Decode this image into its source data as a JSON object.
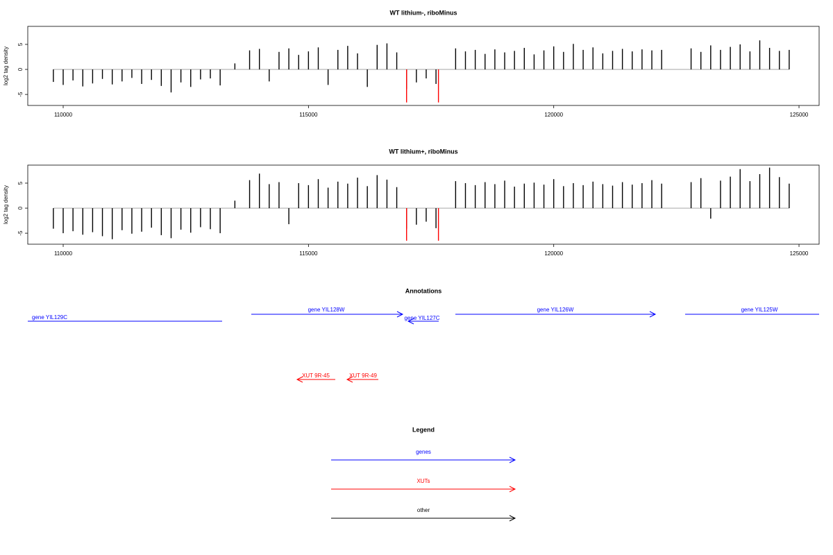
{
  "chart_data": [
    {
      "type": "bar",
      "title": "WT lithium-, riboMinus",
      "y_label": "log2 tag density",
      "xlim": [
        109278,
        125410
      ],
      "ylim": [
        -7.2,
        8.6
      ],
      "xticks": [
        110000,
        115000,
        120000,
        125000
      ],
      "yticks": [
        -5,
        0,
        5
      ],
      "series": [
        {
          "color": "#000000",
          "x": [
            109800,
            110000,
            110200,
            110400,
            110600,
            110800,
            111000,
            111200,
            111400,
            111600,
            111800,
            112000,
            112200,
            112400,
            112600,
            112800,
            113000,
            113200,
            113500,
            113800,
            114000,
            114200,
            114400,
            114600,
            114800,
            115000,
            115200,
            115400,
            115600,
            115800,
            116000,
            116200,
            116400,
            116600,
            116800,
            117000,
            117200,
            117400,
            117600,
            118000,
            118200,
            118400,
            118600,
            118800,
            119000,
            119200,
            119400,
            119600,
            119800,
            120000,
            120200,
            120400,
            120600,
            120800,
            121000,
            121200,
            121400,
            121600,
            121800,
            122000,
            122200,
            122800,
            123000,
            123200,
            123400,
            123600,
            123800,
            124000,
            124200,
            124400,
            124600,
            124800
          ],
          "values": [
            -2.5,
            -3.1,
            -2.2,
            -3.4,
            -2.8,
            -1.9,
            -3.0,
            -2.4,
            -1.7,
            -2.9,
            -2.1,
            -3.3,
            -4.6,
            -2.6,
            -3.5,
            -2.0,
            -1.8,
            -3.2,
            1.2,
            3.8,
            4.1,
            -2.4,
            3.5,
            4.2,
            2.9,
            3.6,
            4.4,
            -3.1,
            3.9,
            4.7,
            3.2,
            -3.5,
            4.9,
            5.2,
            3.4,
            -3.9,
            -2.6,
            -1.8,
            -2.9,
            4.2,
            3.6,
            3.9,
            3.1,
            4.0,
            3.4,
            3.7,
            4.3,
            3.0,
            3.8,
            4.6,
            3.5,
            5.1,
            3.9,
            4.4,
            3.2,
            3.7,
            4.1,
            3.6,
            4.0,
            3.8,
            3.9,
            4.2,
            3.5,
            4.8,
            3.9,
            4.5,
            5.0,
            3.6,
            5.8,
            4.3,
            3.7,
            3.9
          ]
        },
        {
          "color": "#ff0000",
          "x": [
            117000,
            117650
          ],
          "values": [
            -6.6,
            -6.6
          ]
        }
      ]
    },
    {
      "type": "bar",
      "title": "WT lithium+, riboMinus",
      "y_label": "log2 tag density",
      "xlim": [
        109278,
        125410
      ],
      "ylim": [
        -7.2,
        8.6
      ],
      "xticks": [
        110000,
        115000,
        120000,
        125000
      ],
      "yticks": [
        -5,
        0,
        5
      ],
      "series": [
        {
          "color": "#000000",
          "x": [
            109800,
            110000,
            110200,
            110400,
            110600,
            110800,
            111000,
            111200,
            111400,
            111600,
            111800,
            112000,
            112200,
            112400,
            112600,
            112800,
            113000,
            113200,
            113500,
            113800,
            114000,
            114200,
            114400,
            114600,
            114800,
            115000,
            115200,
            115400,
            115600,
            115800,
            116000,
            116200,
            116400,
            116600,
            116800,
            117000,
            117200,
            117400,
            117600,
            118000,
            118200,
            118400,
            118600,
            118800,
            119000,
            119200,
            119400,
            119600,
            119800,
            120000,
            120200,
            120400,
            120600,
            120800,
            121000,
            121200,
            121400,
            121600,
            121800,
            122000,
            122200,
            122800,
            123000,
            123200,
            123400,
            123600,
            123800,
            124000,
            124200,
            124400,
            124600,
            124800
          ],
          "values": [
            -4.1,
            -5.0,
            -4.6,
            -5.3,
            -4.8,
            -5.6,
            -6.2,
            -4.4,
            -5.1,
            -4.7,
            -3.9,
            -5.4,
            -6.0,
            -4.3,
            -4.9,
            -3.8,
            -4.2,
            -5.0,
            1.5,
            5.6,
            6.9,
            4.8,
            5.2,
            -3.2,
            5.0,
            4.6,
            5.8,
            4.1,
            5.3,
            4.9,
            6.1,
            4.4,
            6.6,
            5.7,
            4.2,
            -4.1,
            -3.3,
            -2.7,
            -4.0,
            5.4,
            5.0,
            4.6,
            5.2,
            4.8,
            5.5,
            4.3,
            4.9,
            5.1,
            4.7,
            5.8,
            4.4,
            5.0,
            4.6,
            5.3,
            4.8,
            4.5,
            5.2,
            4.7,
            5.0,
            5.6,
            4.9,
            5.2,
            6.0,
            -2.1,
            5.5,
            6.3,
            7.8,
            5.4,
            6.8,
            8.1,
            6.2,
            4.9
          ]
        },
        {
          "color": "#ff0000",
          "x": [
            117000,
            117650
          ],
          "values": [
            -6.5,
            -6.5
          ]
        }
      ]
    }
  ],
  "annotations": {
    "title": "Annotations",
    "genes": {
      "color": "#0000ff",
      "labels": [
        "gene YIL129C",
        "gene YIL128W",
        "gene YIL127C",
        "gene YIL126W",
        "gene YIL125W"
      ]
    },
    "xuts": {
      "color": "#ff0000",
      "labels": [
        "XUT 9R-45",
        "XUT 9R-49"
      ]
    }
  },
  "legend": {
    "title": "Legend",
    "items": [
      {
        "label": "genes",
        "color": "#0000ff"
      },
      {
        "label": "XUTs",
        "color": "#ff0000"
      },
      {
        "label": "other",
        "color": "#000000"
      }
    ]
  }
}
